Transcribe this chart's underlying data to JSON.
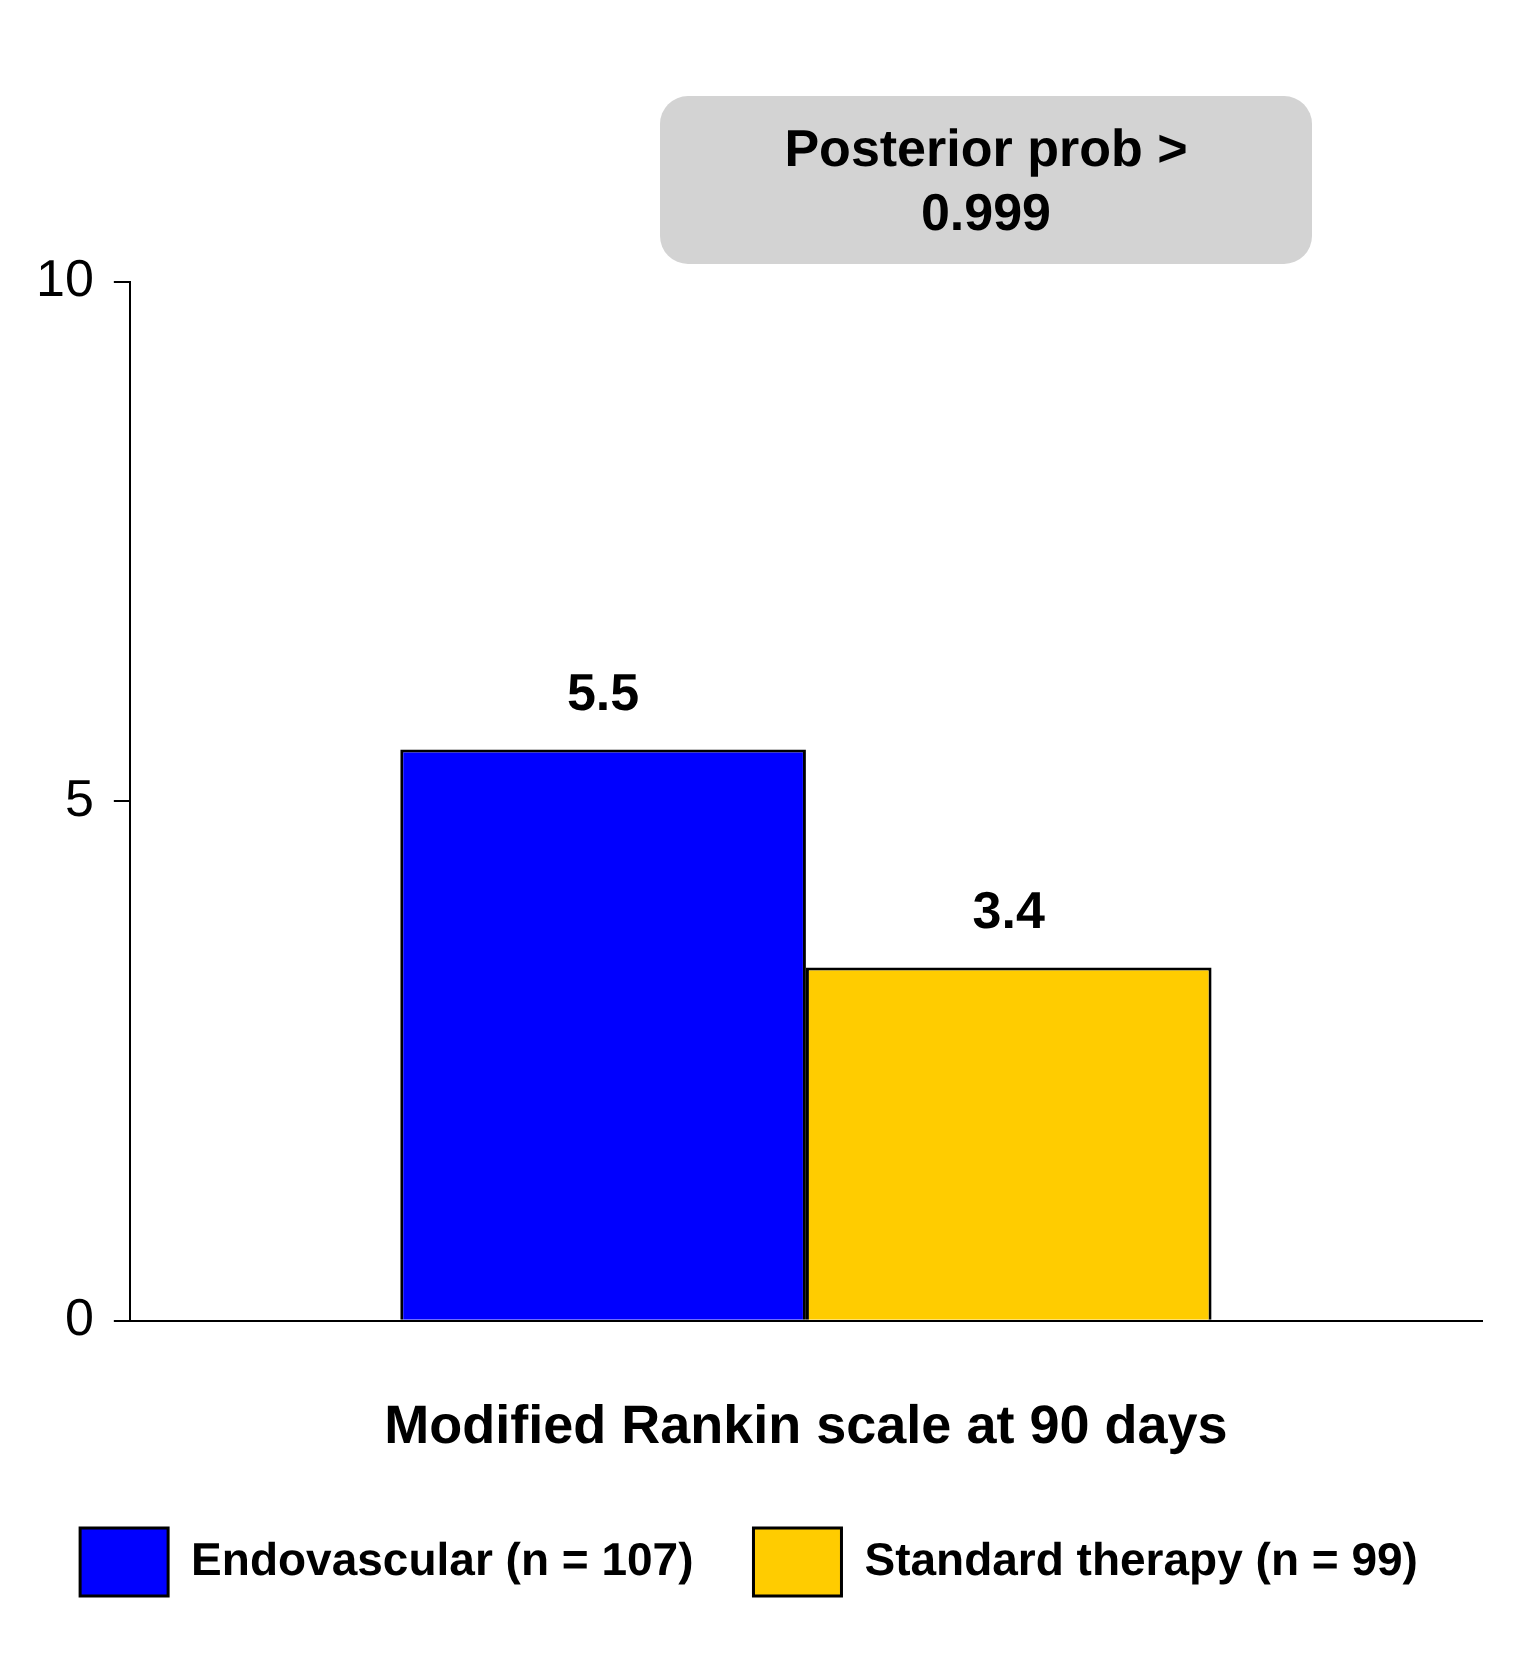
{
  "chart_data": {
    "type": "bar",
    "annotations": [
      "Posterior prob > 0.999"
    ],
    "xlabel": "Modified Rankin scale at 90 days",
    "categories": [
      null
    ],
    "series": [
      {
        "name": "Endovascular (n = 107)",
        "color": "#0000ff",
        "values": [
          5.5
        ]
      },
      {
        "name": "Standard therapy (n = 99)",
        "color": "#ffcc00",
        "values": [
          3.4
        ]
      }
    ],
    "ylim": [
      0,
      10
    ],
    "yticks": [
      0,
      5,
      10
    ],
    "grid": false,
    "legend": "bottom",
    "data_labels": true
  }
}
